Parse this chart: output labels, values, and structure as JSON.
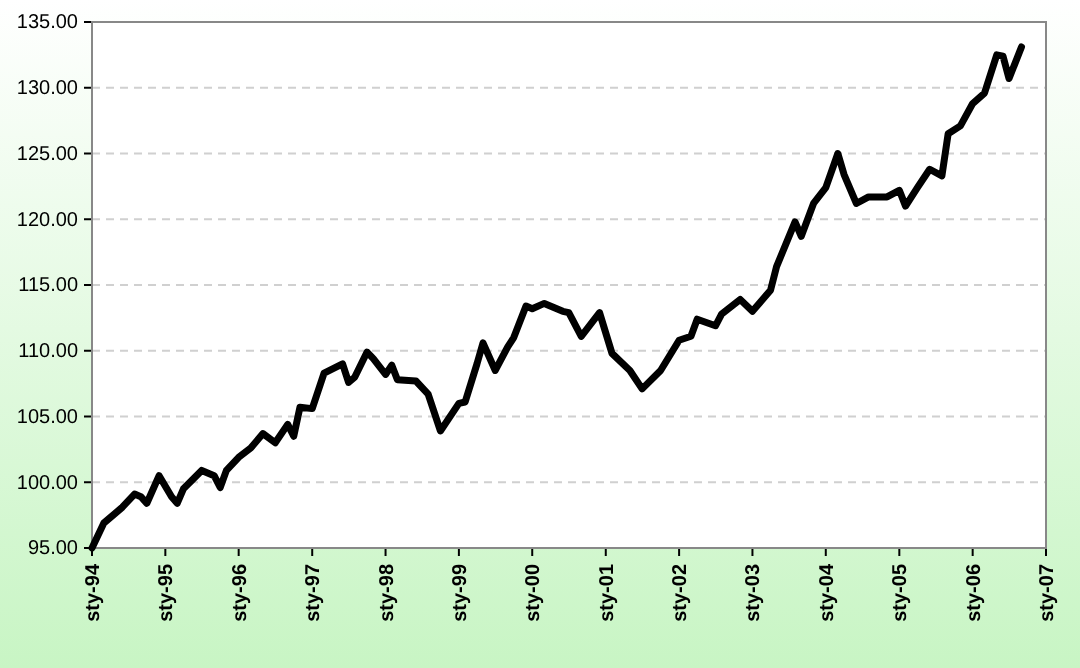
{
  "chart_data": {
    "type": "line",
    "grid": "y",
    "line_style": "solid",
    "marker": "none",
    "xlim": [
      "1994-01",
      "2007-01"
    ],
    "xticks": [
      {
        "value": "1994-01",
        "label": "sty-94"
      },
      {
        "value": "1995-01",
        "label": "sty-95"
      },
      {
        "value": "1996-01",
        "label": "sty-96"
      },
      {
        "value": "1997-01",
        "label": "sty-97"
      },
      {
        "value": "1998-01",
        "label": "sty-98"
      },
      {
        "value": "1999-01",
        "label": "sty-99"
      },
      {
        "value": "2000-01",
        "label": "sty-00"
      },
      {
        "value": "2001-01",
        "label": "sty-01"
      },
      {
        "value": "2002-01",
        "label": "sty-02"
      },
      {
        "value": "2003-01",
        "label": "sty-03"
      },
      {
        "value": "2004-01",
        "label": "sty-04"
      },
      {
        "value": "2005-01",
        "label": "sty-05"
      },
      {
        "value": "2006-01",
        "label": "sty-06"
      },
      {
        "value": "2007-01",
        "label": "sty-07"
      }
    ],
    "ylim": [
      95,
      135
    ],
    "yticks": [
      {
        "value": 95,
        "label": "95.00"
      },
      {
        "value": 100,
        "label": "100.00"
      },
      {
        "value": 105,
        "label": "105.00"
      },
      {
        "value": 110,
        "label": "110.00"
      },
      {
        "value": 115,
        "label": "115.00"
      },
      {
        "value": 120,
        "label": "120.00"
      },
      {
        "value": 125,
        "label": "125.00"
      },
      {
        "value": 130,
        "label": "130.00"
      },
      {
        "value": 135,
        "label": "135.00"
      }
    ],
    "x": [
      "1994-01",
      "1994-03",
      "1994-06",
      "1994-08",
      "1994-09",
      "1994-10",
      "1994-12",
      "1995-02",
      "1995-03",
      "1995-04",
      "1995-07",
      "1995-09",
      "1995-10",
      "1995-11",
      "1996-01",
      "1996-03",
      "1996-05",
      "1996-07",
      "1996-09",
      "1996-10",
      "1996-11",
      "1997-01",
      "1997-03",
      "1997-06",
      "1997-07",
      "1997-08",
      "1997-10",
      "1997-11",
      "1998-01",
      "1998-02",
      "1998-03",
      "1998-06",
      "1998-08",
      "1998-10",
      "1999-01",
      "1999-02",
      "1999-04",
      "1999-05",
      "1999-07",
      "1999-09",
      "1999-10",
      "1999-12",
      "2000-01",
      "2000-03",
      "2000-06",
      "2000-07",
      "2000-09",
      "2000-12",
      "2001-02",
      "2001-05",
      "2001-07",
      "2001-10",
      "2002-01",
      "2002-03",
      "2002-04",
      "2002-07",
      "2002-08",
      "2002-11",
      "2003-01",
      "2003-04",
      "2003-05",
      "2003-08",
      "2003-09",
      "2003-11",
      "2004-01",
      "2004-03",
      "2004-04",
      "2004-06",
      "2004-08",
      "2004-11",
      "2005-01",
      "2005-02",
      "2005-04",
      "2005-06",
      "2005-08",
      "2005-09",
      "2005-11",
      "2006-01",
      "2006-03",
      "2006-05",
      "2006-06",
      "2006-07",
      "2006-09"
    ],
    "series": [
      {
        "color": "#000000",
        "values": [
          95.0,
          96.9,
          98.1,
          99.1,
          98.9,
          98.4,
          100.5,
          98.9,
          98.4,
          99.5,
          100.9,
          100.5,
          99.6,
          100.9,
          101.9,
          102.6,
          103.7,
          103.0,
          104.4,
          103.5,
          105.7,
          105.6,
          108.3,
          109.0,
          107.6,
          108.0,
          109.9,
          109.4,
          108.2,
          108.9,
          107.8,
          107.7,
          106.7,
          103.9,
          106.0,
          106.1,
          109.0,
          110.6,
          108.5,
          110.3,
          111.0,
          113.4,
          113.2,
          113.6,
          113.0,
          112.9,
          111.1,
          112.9,
          109.8,
          108.5,
          107.1,
          108.5,
          110.8,
          111.1,
          112.4,
          111.9,
          112.8,
          113.9,
          113.0,
          114.6,
          116.4,
          119.8,
          118.7,
          121.2,
          122.4,
          125.0,
          123.4,
          121.2,
          121.7,
          121.7,
          122.2,
          121.0,
          122.4,
          123.8,
          123.3,
          126.5,
          127.1,
          128.8,
          129.6,
          132.5,
          132.4,
          130.7,
          133.1
        ]
      }
    ]
  }
}
